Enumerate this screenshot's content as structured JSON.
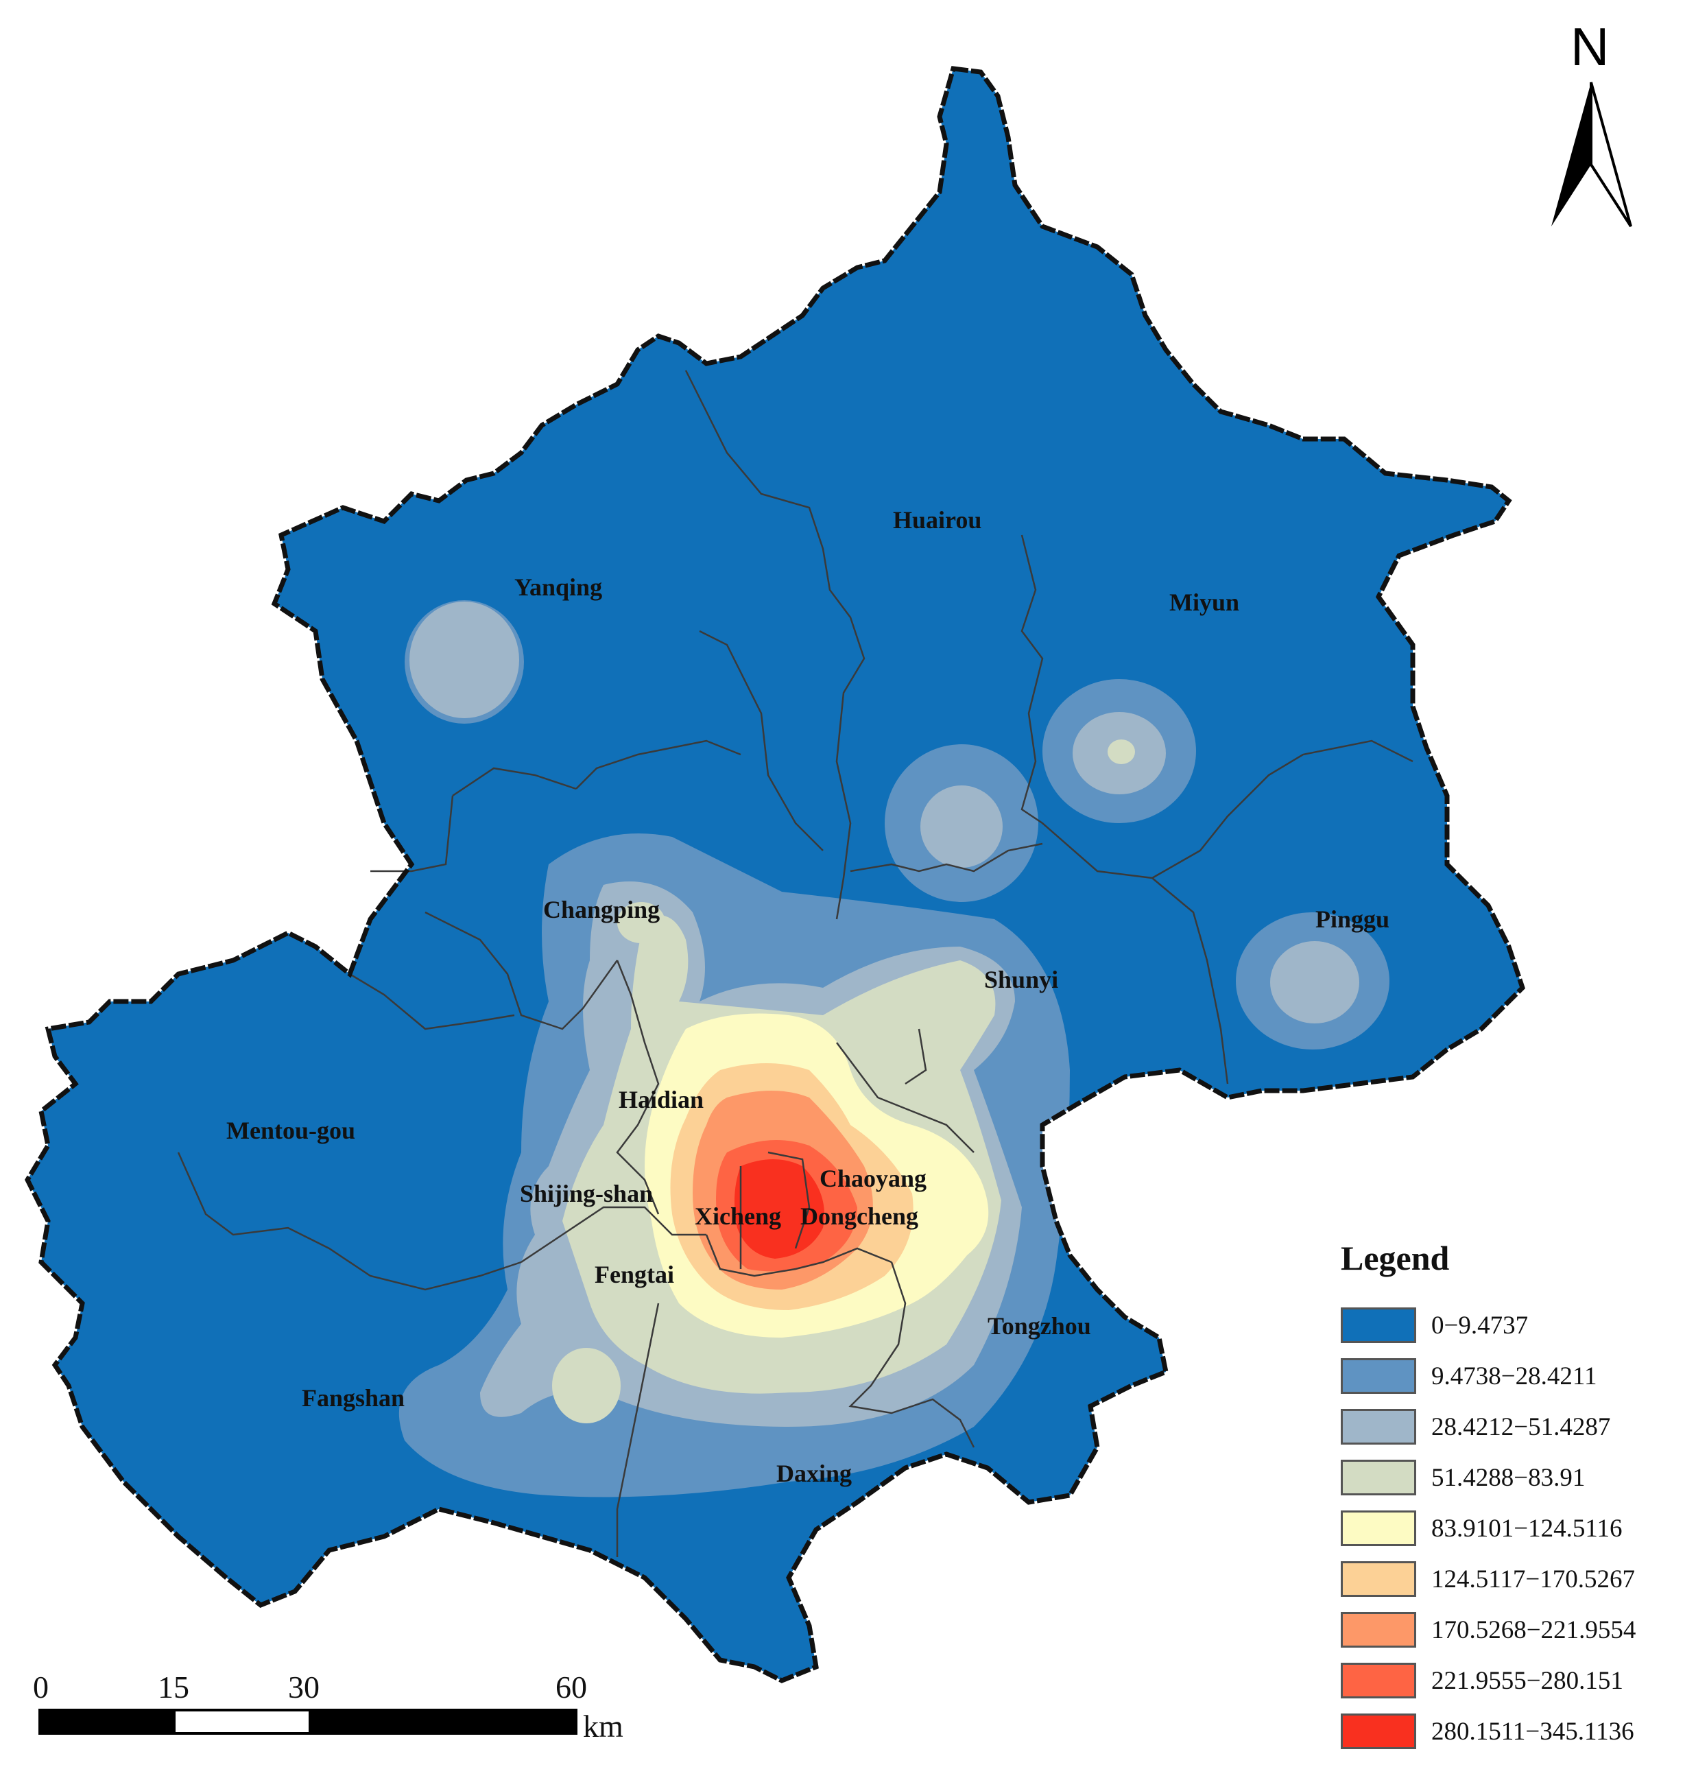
{
  "map": {
    "north_label": "N",
    "districts": [
      {
        "key": "huairou",
        "label": "Huairou"
      },
      {
        "key": "yanqing",
        "label": "Yanqing"
      },
      {
        "key": "miyun",
        "label": "Miyun"
      },
      {
        "key": "changping",
        "label": "Changping"
      },
      {
        "key": "pinggu",
        "label": "Pinggu"
      },
      {
        "key": "shunyi",
        "label": "Shunyi"
      },
      {
        "key": "haidian",
        "label": "Haidian"
      },
      {
        "key": "mentougou",
        "label": "Mentou-gou"
      },
      {
        "key": "chaoyang",
        "label": "Chaoyang"
      },
      {
        "key": "shijingshan",
        "label": "Shijing-shan"
      },
      {
        "key": "xicheng",
        "label": "Xicheng"
      },
      {
        "key": "dongcheng",
        "label": "Dongcheng"
      },
      {
        "key": "fengtai",
        "label": "Fengtai"
      },
      {
        "key": "tongzhou",
        "label": "Tongzhou"
      },
      {
        "key": "fangshan",
        "label": "Fangshan"
      },
      {
        "key": "daxing",
        "label": "Daxing"
      }
    ]
  },
  "legend": {
    "title": "Legend",
    "classes": [
      {
        "range": "0−9.4737",
        "color": "#1070b8"
      },
      {
        "range": "9.4738−28.4211",
        "color": "#5f93c2"
      },
      {
        "range": "28.4212−51.4287",
        "color": "#9fb6c9"
      },
      {
        "range": "51.4288−83.91",
        "color": "#d3dcc3"
      },
      {
        "range": "83.9101−124.5116",
        "color": "#fdfbc3"
      },
      {
        "range": "124.5117−170.5267",
        "color": "#fcd196"
      },
      {
        "range": "170.5268−221.9554",
        "color": "#fd9868"
      },
      {
        "range": "221.9555−280.151",
        "color": "#fe6444"
      },
      {
        "range": "280.1511−345.1136",
        "color": "#f9301f"
      }
    ]
  },
  "scale_bar": {
    "ticks": [
      "0",
      "15",
      "30",
      "60"
    ],
    "unit": "km"
  }
}
